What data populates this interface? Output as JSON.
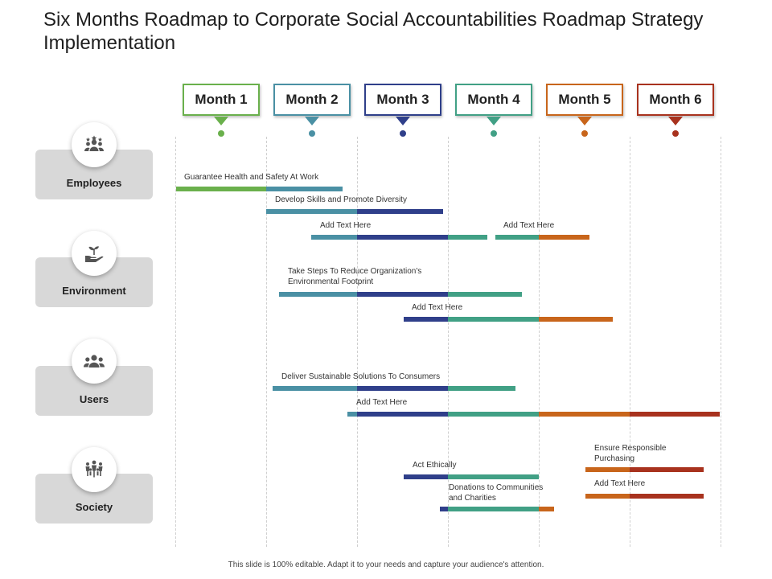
{
  "title": "Six Months Roadmap to Corporate Social Accountabilities Roadmap Strategy Implementation",
  "colors": {
    "green": "#6ab04c",
    "teal": "#4a90a4",
    "navy": "#2f3f8a",
    "seagreen": "#41a085",
    "orange": "#c8651b",
    "red": "#a8321e"
  },
  "months": [
    {
      "label": "Month 1",
      "color": "#6ab04c"
    },
    {
      "label": "Month 2",
      "color": "#4a90a4"
    },
    {
      "label": "Month 3",
      "color": "#2f3f8a"
    },
    {
      "label": "Month 4",
      "color": "#41a085"
    },
    {
      "label": "Month 5",
      "color": "#c8651b"
    },
    {
      "label": "Month 6",
      "color": "#a8321e"
    }
  ],
  "categories": [
    {
      "label": "Employees",
      "icon": "team-icon"
    },
    {
      "label": "Environment",
      "icon": "plant-hand-icon"
    },
    {
      "label": "Users",
      "icon": "users-icon"
    },
    {
      "label": "Society",
      "icon": "community-icon"
    }
  ],
  "tasks": {
    "t1": "Guarantee Health and Safety At Work",
    "t2": "Develop Skills and Promote Diversity",
    "t3": "Add Text Here",
    "t4": "Add Text Here",
    "t5": "Take Steps To Reduce Organization's Environmental Footprint",
    "t6": "Add Text Here",
    "t7": "Deliver Sustainable Solutions To Consumers",
    "t8": "Add Text Here",
    "t9": "Act Ethically",
    "t10": "Donations to Communities and Charities",
    "t11": "Ensure Responsible Purchasing",
    "t12": "Add Text Here"
  },
  "footer": "This slide is 100% editable. Adapt it to your needs and capture your audience's attention."
}
